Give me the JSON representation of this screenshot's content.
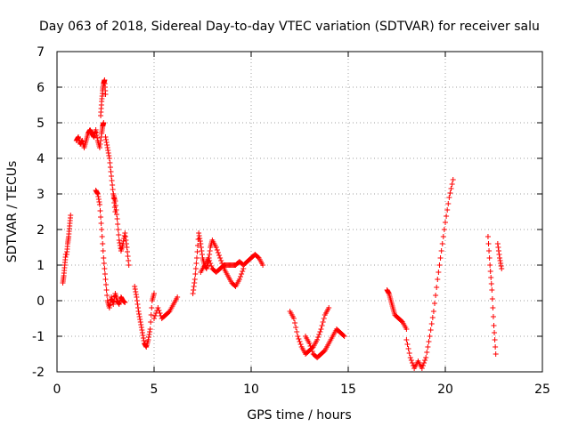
{
  "chart_data": {
    "type": "scatter",
    "title": "Day 063 of 2018, Sidereal Day-to-day VTEC variation (SDTVAR) for receiver salu",
    "xlabel": "GPS time / hours",
    "ylabel": "SDTVAR / TECUs",
    "xlim": [
      0,
      25
    ],
    "ylim": [
      -2,
      7
    ],
    "xticks": [
      0,
      5,
      10,
      15,
      20,
      25
    ],
    "yticks": [
      -2,
      -1,
      0,
      1,
      2,
      3,
      4,
      5,
      6,
      7
    ],
    "grid": true,
    "marker": "+",
    "color": "#ff0000",
    "series": [
      {
        "name": "SDTVAR",
        "segments": [
          {
            "x": [
              0.3,
              0.35,
              0.4,
              0.45,
              0.5,
              0.55,
              0.6,
              0.65,
              0.7
            ],
            "y": [
              0.5,
              0.7,
              1.0,
              1.3,
              1.3,
              1.6,
              1.8,
              2.1,
              2.4
            ]
          },
          {
            "x": [
              1.0,
              1.1,
              1.2,
              1.3,
              1.4,
              1.5,
              1.6,
              1.7,
              1.8,
              1.9,
              2.0,
              2.1,
              2.2,
              2.3,
              2.35,
              2.4
            ],
            "y": [
              4.5,
              4.6,
              4.4,
              4.5,
              4.3,
              4.5,
              4.7,
              4.8,
              4.7,
              4.6,
              4.8,
              4.5,
              4.3,
              4.7,
              4.9,
              5.0
            ]
          },
          {
            "x": [
              2.25,
              2.3,
              2.35,
              2.4,
              2.45,
              2.5
            ],
            "y": [
              5.2,
              5.6,
              5.9,
              6.1,
              6.2,
              5.8
            ]
          },
          {
            "x": [
              2.5,
              2.6,
              2.7,
              2.8,
              2.9,
              3.0
            ],
            "y": [
              4.6,
              4.3,
              4.0,
              3.5,
              3.0,
              2.5
            ]
          },
          {
            "x": [
              2.0,
              2.1,
              2.2,
              2.3,
              2.4,
              2.5,
              2.6,
              2.7,
              2.8,
              2.9,
              3.0,
              3.1,
              3.2,
              3.3,
              3.4,
              3.5
            ],
            "y": [
              3.1,
              3.0,
              2.7,
              2.0,
              1.2,
              0.6,
              0.0,
              -0.2,
              0.1,
              -0.1,
              0.2,
              0.0,
              -0.1,
              0.1,
              0.0,
              -0.05
            ]
          },
          {
            "x": [
              2.9,
              3.0,
              3.1,
              3.2,
              3.3,
              3.4,
              3.5,
              3.6,
              3.7
            ],
            "y": [
              3.0,
              2.8,
              2.3,
              1.7,
              1.4,
              1.6,
              1.9,
              1.5,
              1.0
            ]
          },
          {
            "x": [
              4.0,
              4.1,
              4.2,
              4.3,
              4.4,
              4.5,
              4.6,
              4.7,
              4.8,
              4.9,
              5.0
            ],
            "y": [
              0.4,
              0.1,
              -0.3,
              -0.6,
              -0.9,
              -1.2,
              -1.3,
              -1.1,
              -0.8,
              0.0,
              0.2
            ]
          },
          {
            "x": [
              5.0,
              5.2,
              5.4,
              5.6,
              5.8,
              6.0,
              6.2
            ],
            "y": [
              -0.5,
              -0.2,
              -0.5,
              -0.4,
              -0.3,
              -0.1,
              0.1
            ]
          },
          {
            "x": [
              7.0,
              7.1,
              7.2,
              7.3,
              7.4,
              7.5,
              7.6,
              7.7,
              7.8,
              7.9,
              8.0,
              8.2,
              8.4,
              8.6,
              8.8,
              9.0,
              9.2,
              9.4,
              9.6
            ],
            "y": [
              0.2,
              0.6,
              1.2,
              1.9,
              1.6,
              1.2,
              1.0,
              0.9,
              1.1,
              1.5,
              1.7,
              1.5,
              1.2,
              0.9,
              0.7,
              0.5,
              0.4,
              0.6,
              0.9
            ]
          },
          {
            "x": [
              7.4,
              7.6,
              7.8,
              8.0,
              8.2,
              8.4,
              8.6,
              8.8,
              9.0,
              9.2,
              9.4,
              9.6,
              9.8,
              10.0,
              10.2,
              10.4,
              10.6
            ],
            "y": [
              0.8,
              1.0,
              1.2,
              0.9,
              0.8,
              0.9,
              1.0,
              1.0,
              1.0,
              1.0,
              1.1,
              1.0,
              1.1,
              1.2,
              1.3,
              1.2,
              1.0
            ]
          },
          {
            "x": [
              12.0,
              12.2,
              12.4,
              12.6,
              12.8,
              13.0,
              13.2,
              13.4,
              13.6,
              13.8,
              14.0
            ],
            "y": [
              -0.3,
              -0.5,
              -1.0,
              -1.3,
              -1.5,
              -1.4,
              -1.3,
              -1.1,
              -0.8,
              -0.4,
              -0.2
            ]
          },
          {
            "x": [
              12.8,
              13.0,
              13.2,
              13.4,
              13.6,
              13.8,
              14.0,
              14.2,
              14.4,
              14.6,
              14.8
            ],
            "y": [
              -1.0,
              -1.2,
              -1.5,
              -1.6,
              -1.5,
              -1.4,
              -1.2,
              -1.0,
              -0.8,
              -0.9,
              -1.0
            ]
          },
          {
            "x": [
              17.0,
              17.1,
              17.2,
              17.3,
              17.4,
              17.6,
              17.8,
              18.0
            ],
            "y": [
              0.3,
              0.2,
              0.0,
              -0.2,
              -0.4,
              -0.5,
              -0.6,
              -0.8
            ]
          },
          {
            "x": [
              18.0,
              18.2,
              18.4,
              18.6,
              18.8,
              19.0,
              19.2,
              19.4,
              19.6,
              19.8,
              20.0,
              20.2,
              20.4
            ],
            "y": [
              -1.1,
              -1.6,
              -1.9,
              -1.7,
              -1.9,
              -1.6,
              -1.0,
              -0.3,
              0.6,
              1.4,
              2.2,
              2.9,
              3.4
            ]
          },
          {
            "x": [
              22.2,
              22.3,
              22.4,
              22.5,
              22.6
            ],
            "y": [
              1.8,
              1.0,
              0.3,
              -0.7,
              -1.5
            ]
          },
          {
            "x": [
              22.7,
              22.8,
              22.9
            ],
            "y": [
              1.6,
              1.2,
              0.9
            ]
          }
        ]
      }
    ]
  }
}
